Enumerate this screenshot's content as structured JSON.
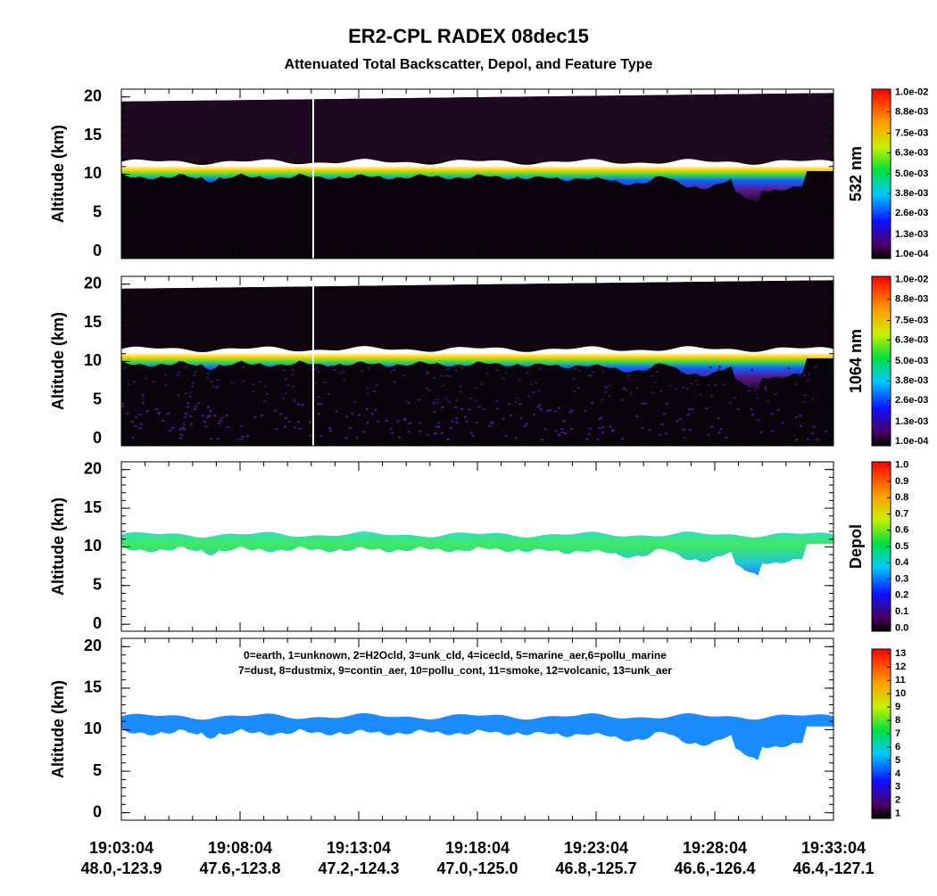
{
  "title": "ER2-CPL RADEX 08dec15",
  "subtitle": "Attenuated Total Backscatter, Depol, and Feature Type",
  "x_axis": {
    "ticks": [
      "19:03:04",
      "19:08:04",
      "19:13:04",
      "19:18:04",
      "19:23:04",
      "19:28:04",
      "19:33:04"
    ],
    "positions": [
      "48.0,-123.9",
      "47.6,-123.8",
      "47.2,-124.3",
      "47.0,-125.0",
      "46.8,-125.7",
      "46.6,-126.4",
      "46.4,-127.1"
    ]
  },
  "chart_data": [
    {
      "type": "heatmap",
      "ylabel": "Altitude (km)",
      "ylim": [
        -0.9,
        21
      ],
      "yticks": [
        0,
        5,
        10,
        15,
        20
      ],
      "colorbar_label": "532 nm",
      "colorbar_lim": [
        -0.00017,
        0.0102
      ],
      "colorbar_ticks": [
        {
          "value": 0.0001,
          "label": "1.0e-04"
        },
        {
          "value": 0.0013,
          "label": "1.3e-03"
        },
        {
          "value": 0.0026,
          "label": "2.6e-03"
        },
        {
          "value": 0.0038,
          "label": "3.8e-03"
        },
        {
          "value": 0.005,
          "label": "5.0e-03"
        },
        {
          "value": 0.0063,
          "label": "6.3e-03"
        },
        {
          "value": 0.0075,
          "label": "7.5e-03"
        },
        {
          "value": 0.0088,
          "label": "8.8e-03"
        },
        {
          "value": 0.01,
          "label": "1.0e-02"
        }
      ]
    },
    {
      "type": "heatmap",
      "ylabel": "Altitude (km)",
      "ylim": [
        -0.9,
        21
      ],
      "yticks": [
        0,
        5,
        10,
        15,
        20
      ],
      "colorbar_label": "1064 nm",
      "colorbar_lim": [
        -0.00017,
        0.0102
      ],
      "colorbar_ticks": [
        {
          "value": 0.0001,
          "label": "1.0e-04"
        },
        {
          "value": 0.0013,
          "label": "1.3e-03"
        },
        {
          "value": 0.0026,
          "label": "2.6e-03"
        },
        {
          "value": 0.0038,
          "label": "3.8e-03"
        },
        {
          "value": 0.005,
          "label": "5.0e-03"
        },
        {
          "value": 0.0063,
          "label": "6.3e-03"
        },
        {
          "value": 0.0075,
          "label": "7.5e-03"
        },
        {
          "value": 0.0088,
          "label": "8.8e-03"
        },
        {
          "value": 0.01,
          "label": "1.0e-02"
        }
      ]
    },
    {
      "type": "depol",
      "ylabel": "Altitude (km)",
      "ylim": [
        -0.9,
        21
      ],
      "yticks": [
        0,
        5,
        10,
        15,
        20
      ],
      "colorbar_label": "Depol",
      "colorbar_lim": [
        -0.02,
        1.02
      ],
      "colorbar_ticks": [
        {
          "value": 0,
          "label": "0.0"
        },
        0.1,
        0.2,
        0.3,
        0.4,
        0.5,
        0.6,
        0.7,
        0.8,
        0.9,
        {
          "value": 1,
          "label": "1.0"
        }
      ]
    },
    {
      "type": "feature",
      "ylabel": "Altitude (km)",
      "ylim": [
        -0.9,
        21
      ],
      "yticks": [
        0,
        5,
        10,
        15,
        20
      ],
      "annotation": [
        "0=earth, 1=unknown, 2=H2Ocld, 3=unk_cld, 4=icecld, 5=marine_aer,6=pollu_marine",
        "7=dust, 8=dustmix, 9=contin_aer, 10=pollu_cont, 11=smoke, 12=volcanic, 13=unk_aer"
      ],
      "colorbar_lim": [
        0.65,
        13.35
      ],
      "colorbar_ticks": [
        1,
        2,
        3,
        4,
        5,
        6,
        7,
        8,
        9,
        10,
        11,
        12,
        13
      ]
    }
  ]
}
